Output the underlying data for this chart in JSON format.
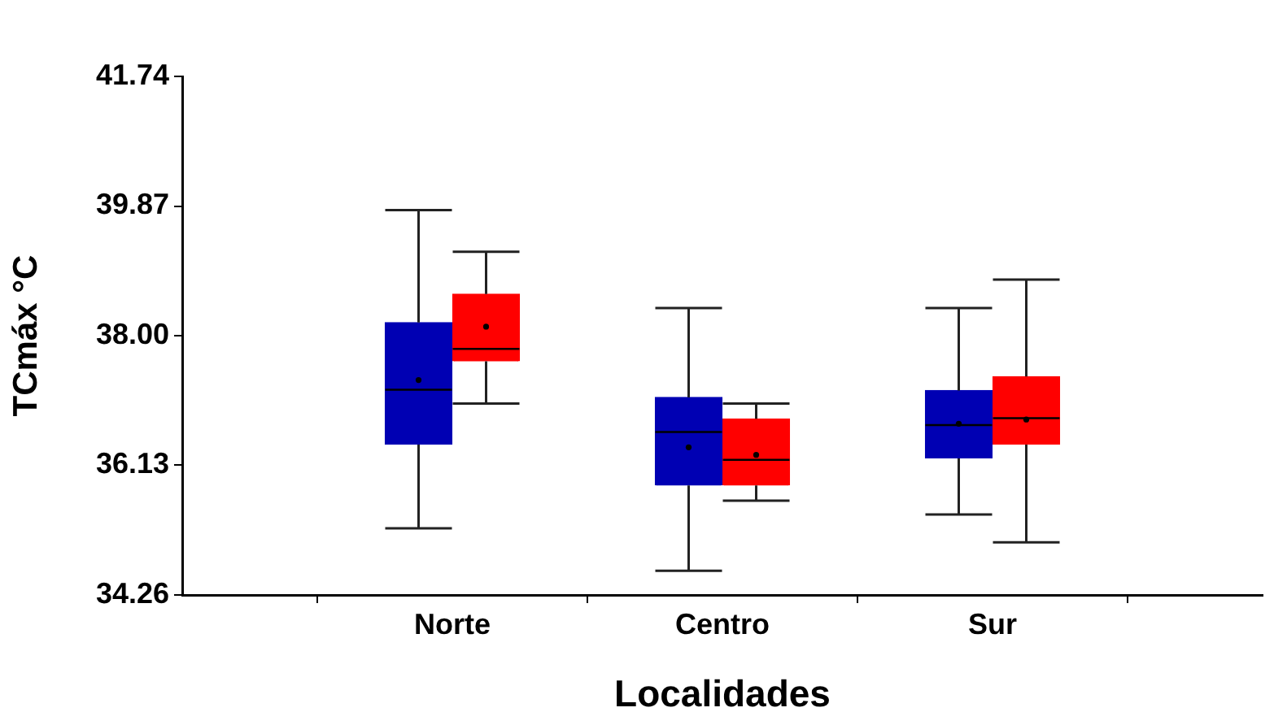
{
  "chart_data": {
    "type": "box",
    "xlabel": "Localidades",
    "ylabel": "TCmáx °C",
    "categories": [
      "Norte",
      "Centro",
      "Sur"
    ],
    "ylim": [
      34.26,
      41.74
    ],
    "yticks": [
      34.26,
      36.13,
      {
        "value": 38,
        "label": "38.00"
      },
      39.87,
      41.74
    ],
    "grid": false,
    "series": [
      {
        "color": "#0000b3",
        "boxes": [
          {
            "low": 35.22,
            "q1": 36.43,
            "median": 37.22,
            "q3": 38.19,
            "high": 39.81,
            "mean": 37.36
          },
          {
            "low": 34.61,
            "q1": 35.84,
            "median": 36.61,
            "q3": 37.11,
            "high": 38.4,
            "mean": 36.39
          },
          {
            "low": 35.42,
            "q1": 36.23,
            "median": 36.71,
            "q3": 37.21,
            "high": 38.4,
            "mean": 36.73
          }
        ]
      },
      {
        "color": "#ff0000",
        "boxes": [
          {
            "low": 37.02,
            "q1": 37.63,
            "median": 37.81,
            "q3": 38.6,
            "high": 39.21,
            "mean": 38.13
          },
          {
            "low": 35.62,
            "q1": 35.84,
            "median": 36.21,
            "q3": 36.8,
            "high": 37.02,
            "mean": 36.28
          },
          {
            "low": 35.02,
            "q1": 36.43,
            "median": 36.81,
            "q3": 37.41,
            "high": 38.81,
            "mean": 36.79
          }
        ]
      }
    ]
  }
}
